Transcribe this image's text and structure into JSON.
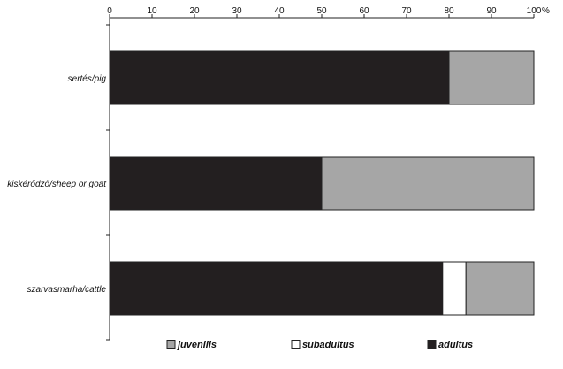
{
  "chart_data": {
    "type": "bar",
    "orientation": "horizontal",
    "stacked": true,
    "categories": [
      "sertés/pig",
      "kiskérődző/sheep or goat",
      "szarvasmarha/cattle"
    ],
    "series": [
      {
        "name": "adultus",
        "values": [
          80,
          50,
          78.5
        ],
        "color": "#231f20"
      },
      {
        "name": "subadultus",
        "values": [
          0,
          0,
          5.5
        ],
        "color": "#ffffff"
      },
      {
        "name": "juvenilis",
        "values": [
          20,
          50,
          16
        ],
        "color": "#a6a6a6"
      }
    ],
    "legend_order": [
      "juvenilis",
      "subadultus",
      "adultus"
    ],
    "xlim": [
      0,
      100
    ],
    "xticks": [
      0,
      10,
      20,
      30,
      40,
      50,
      60,
      70,
      80,
      90,
      100
    ],
    "x_unit": "%",
    "x_axis_position": "top",
    "legend_position": "bottom",
    "grid": false
  }
}
